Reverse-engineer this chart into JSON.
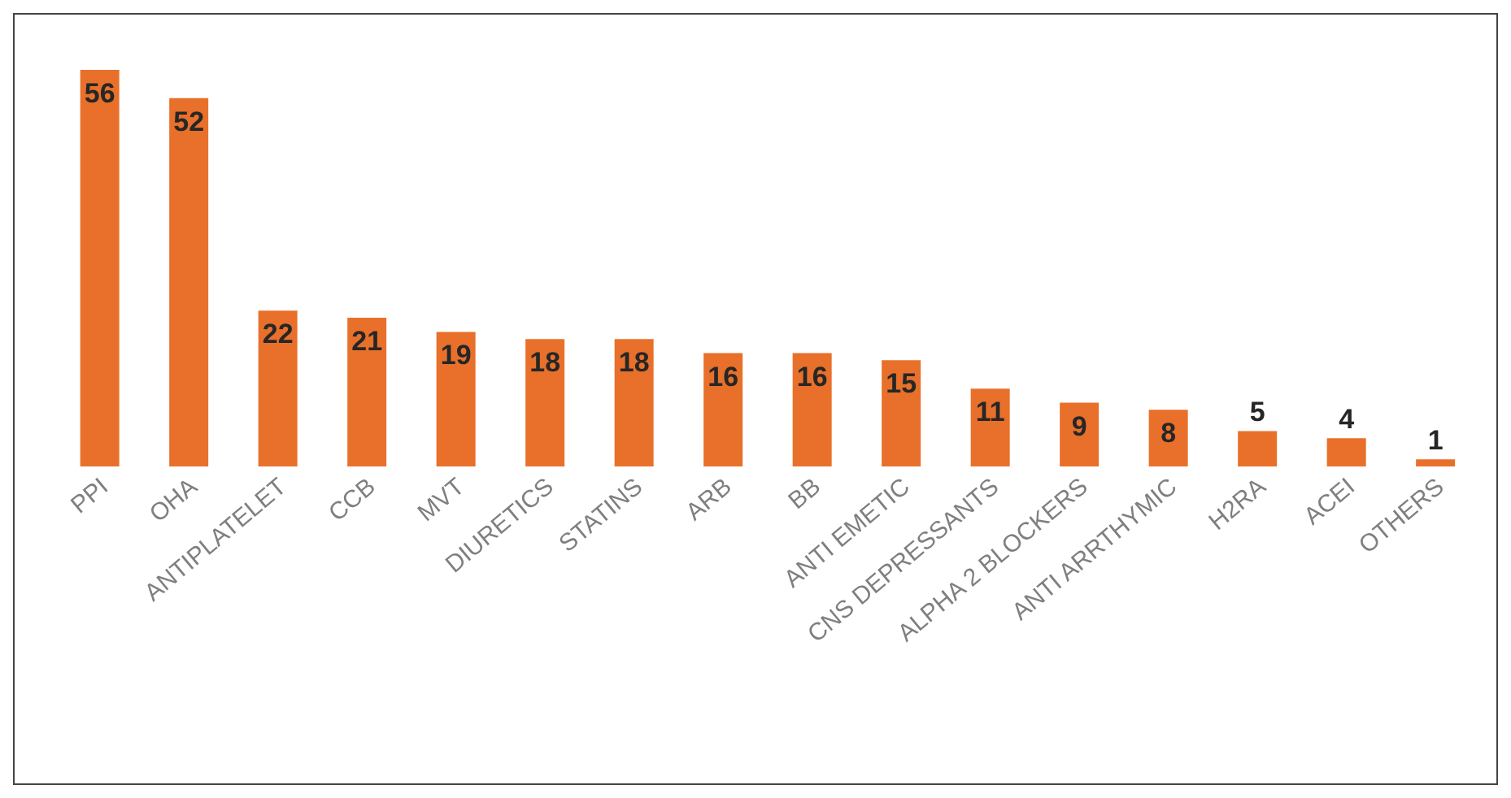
{
  "chart_data": {
    "type": "bar",
    "categories": [
      "PPI",
      "OHA",
      "ANTIPLATELET",
      "CCB",
      "MVT",
      "DIURETICS",
      "STATINS",
      "ARB",
      "BB",
      "ANTI EMETIC",
      "CNS DEPRESSANTS",
      "ALPHA 2 BLOCKERS",
      "ANTI ARRTHYMIC",
      "H2RA",
      "ACEI",
      "OTHERS"
    ],
    "values": [
      56,
      52,
      22,
      21,
      19,
      18,
      18,
      16,
      16,
      15,
      11,
      9,
      8,
      5,
      4,
      1
    ],
    "color": "#e8702a",
    "data_labels": true,
    "grid": false,
    "legend": false
  }
}
